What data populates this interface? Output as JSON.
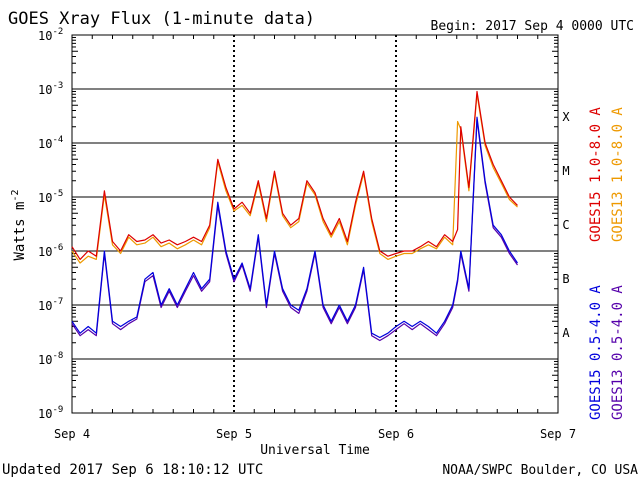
{
  "header": {
    "title": "GOES Xray Flux (1-minute data)",
    "begin": "Begin:  2017 Sep 4 0000 UTC"
  },
  "footer": {
    "updated": "Updated 2017 Sep  6 18:10:12 UTC",
    "credit": "NOAA/SWPC Boulder, CO USA"
  },
  "colors": {
    "goes15_long": "#dd0000",
    "goes13_long": "#ee9900",
    "goes15_short": "#0000dd",
    "goes13_short": "#5500aa"
  },
  "chart_data": {
    "type": "line",
    "xlabel": "Universal Time",
    "ylabel": "Watts m",
    "ylabel_superscript": "-2",
    "yscale": "log",
    "xlim": [
      0,
      3
    ],
    "ylim": [
      1e-09,
      0.01
    ],
    "grid": true,
    "x_ticks": [
      {
        "x": 0,
        "label": "Sep 4"
      },
      {
        "x": 1,
        "label": "Sep 5"
      },
      {
        "x": 2,
        "label": "Sep 6"
      },
      {
        "x": 3,
        "label": "Sep 7"
      }
    ],
    "y_ticks": [
      {
        "exp": -2,
        "label": "10",
        "sup": "-2"
      },
      {
        "exp": -3,
        "label": "10",
        "sup": "-3"
      },
      {
        "exp": -4,
        "label": "10",
        "sup": "-4"
      },
      {
        "exp": -5,
        "label": "10",
        "sup": "-5"
      },
      {
        "exp": -6,
        "label": "10",
        "sup": "-6"
      },
      {
        "exp": -7,
        "label": "10",
        "sup": "-7"
      },
      {
        "exp": -8,
        "label": "10",
        "sup": "-8"
      },
      {
        "exp": -9,
        "label": "10",
        "sup": "-9"
      }
    ],
    "flare_classes": [
      {
        "label": "X",
        "exp": -3.5
      },
      {
        "label": "M",
        "exp": -4.5
      },
      {
        "label": "C",
        "exp": -5.5
      },
      {
        "label": "B",
        "exp": -6.5
      },
      {
        "label": "A",
        "exp": -7.5
      }
    ],
    "legend": [
      {
        "text": "GOES15 1.0-8.0 A",
        "color": "#dd0000"
      },
      {
        "text": "GOES13 1.0-8.0 A",
        "color": "#ee9900"
      },
      {
        "text": "GOES15 0.5-4.0 A",
        "color": "#0000dd"
      },
      {
        "text": "GOES13 0.5-4.0 A",
        "color": "#5500aa"
      }
    ],
    "series": [
      {
        "name": "GOES15 1.0-8.0 A",
        "color": "#dd0000",
        "x": [
          0.0,
          0.05,
          0.1,
          0.15,
          0.2,
          0.25,
          0.3,
          0.35,
          0.4,
          0.45,
          0.5,
          0.55,
          0.6,
          0.65,
          0.7,
          0.75,
          0.8,
          0.85,
          0.9,
          0.95,
          1.0,
          1.05,
          1.1,
          1.15,
          1.2,
          1.25,
          1.3,
          1.35,
          1.4,
          1.45,
          1.5,
          1.55,
          1.6,
          1.65,
          1.7,
          1.75,
          1.8,
          1.85,
          1.9,
          1.95,
          2.0,
          2.05,
          2.1,
          2.15,
          2.2,
          2.25,
          2.3,
          2.35,
          2.38,
          2.4,
          2.45,
          2.5,
          2.55,
          2.6,
          2.65,
          2.7,
          2.75
        ],
        "y": [
          1.2e-06,
          7e-07,
          1e-06,
          8e-07,
          1.3e-05,
          1.5e-06,
          1e-06,
          2e-06,
          1.5e-06,
          1.6e-06,
          2e-06,
          1.4e-06,
          1.6e-06,
          1.3e-06,
          1.5e-06,
          1.8e-06,
          1.5e-06,
          3e-06,
          5e-05,
          1.5e-05,
          6e-06,
          8e-06,
          5e-06,
          2e-05,
          4e-06,
          3e-05,
          5e-06,
          3e-06,
          4e-06,
          2e-05,
          1.2e-05,
          4e-06,
          2e-06,
          4e-06,
          1.5e-06,
          8e-06,
          3e-05,
          4e-06,
          1e-06,
          8e-07,
          9e-07,
          1e-06,
          1e-06,
          1.2e-06,
          1.5e-06,
          1.2e-06,
          2e-06,
          1.5e-06,
          2.5e-06,
          0.0002,
          1.5e-05,
          0.0009,
          0.0001,
          4e-05,
          2e-05,
          1e-05,
          7e-06
        ]
      },
      {
        "name": "GOES13 1.0-8.0 A",
        "color": "#ee9900",
        "x": [
          0.0,
          0.05,
          0.1,
          0.15,
          0.2,
          0.25,
          0.3,
          0.35,
          0.4,
          0.45,
          0.5,
          0.55,
          0.6,
          0.65,
          0.7,
          0.75,
          0.8,
          0.85,
          0.9,
          0.95,
          1.0,
          1.05,
          1.1,
          1.15,
          1.2,
          1.25,
          1.3,
          1.35,
          1.4,
          1.45,
          1.5,
          1.55,
          1.6,
          1.65,
          1.7,
          1.75,
          1.8,
          1.85,
          1.9,
          1.95,
          2.0,
          2.05,
          2.1,
          2.15,
          2.2,
          2.25,
          2.3,
          2.35,
          2.38,
          2.4,
          2.45,
          2.5,
          2.55,
          2.6,
          2.65,
          2.7,
          2.75
        ],
        "y": [
          1e-06,
          6e-07,
          8e-07,
          7e-07,
          1.1e-05,
          1.3e-06,
          9e-07,
          1.8e-06,
          1.3e-06,
          1.4e-06,
          1.8e-06,
          1.2e-06,
          1.4e-06,
          1.1e-06,
          1.3e-06,
          1.6e-06,
          1.3e-06,
          2.7e-06,
          4.5e-05,
          1.3e-05,
          5.5e-06,
          7e-06,
          4.5e-06,
          1.8e-05,
          3.5e-06,
          2.7e-05,
          4.5e-06,
          2.7e-06,
          3.5e-06,
          1.8e-05,
          1.1e-05,
          3.5e-06,
          1.8e-06,
          3.5e-06,
          1.3e-06,
          7e-06,
          2.7e-05,
          3.5e-06,
          9e-07,
          7e-07,
          8e-07,
          9e-07,
          9e-07,
          1.1e-06,
          1.3e-06,
          1.1e-06,
          1.8e-06,
          1.3e-06,
          0.00025,
          0.00018,
          1.3e-05,
          0.0008,
          9e-05,
          3.5e-05,
          1.8e-05,
          9e-06,
          6.5e-06
        ]
      },
      {
        "name": "GOES15 0.5-4.0 A",
        "color": "#0000dd",
        "x": [
          0.0,
          0.05,
          0.1,
          0.15,
          0.2,
          0.25,
          0.3,
          0.35,
          0.4,
          0.45,
          0.5,
          0.55,
          0.6,
          0.65,
          0.7,
          0.75,
          0.8,
          0.85,
          0.9,
          0.95,
          1.0,
          1.05,
          1.1,
          1.15,
          1.2,
          1.25,
          1.3,
          1.35,
          1.4,
          1.45,
          1.5,
          1.55,
          1.6,
          1.65,
          1.7,
          1.75,
          1.8,
          1.85,
          1.9,
          1.95,
          2.0,
          2.05,
          2.1,
          2.15,
          2.2,
          2.25,
          2.3,
          2.35,
          2.38,
          2.4,
          2.45,
          2.5,
          2.55,
          2.6,
          2.65,
          2.7,
          2.75
        ],
        "y": [
          5e-08,
          3e-08,
          4e-08,
          3e-08,
          1e-06,
          5e-08,
          4e-08,
          5e-08,
          6e-08,
          3e-07,
          4e-07,
          1e-07,
          2e-07,
          1e-07,
          2e-07,
          4e-07,
          2e-07,
          3e-07,
          8e-06,
          1e-06,
          3e-07,
          6e-07,
          2e-07,
          2e-06,
          1e-07,
          1e-06,
          2e-07,
          1e-07,
          8e-08,
          2e-07,
          1e-06,
          1e-07,
          5e-08,
          1e-07,
          5e-08,
          1e-07,
          5e-07,
          3e-08,
          2.5e-08,
          3e-08,
          4e-08,
          5e-08,
          4e-08,
          5e-08,
          4e-08,
          3e-08,
          5e-08,
          1e-07,
          3e-07,
          1e-06,
          2e-07,
          0.0003,
          2e-05,
          3e-06,
          2e-06,
          1e-06,
          6e-07
        ]
      },
      {
        "name": "GOES13 0.5-4.0 A",
        "color": "#5500aa",
        "x": [
          0.0,
          0.05,
          0.1,
          0.15,
          0.2,
          0.25,
          0.3,
          0.35,
          0.4,
          0.45,
          0.5,
          0.55,
          0.6,
          0.65,
          0.7,
          0.75,
          0.8,
          0.85,
          0.9,
          0.95,
          1.0,
          1.05,
          1.1,
          1.15,
          1.2,
          1.25,
          1.3,
          1.35,
          1.4,
          1.45,
          1.5,
          1.55,
          1.6,
          1.65,
          1.7,
          1.75,
          1.8,
          1.85,
          1.9,
          1.95,
          2.0,
          2.05,
          2.1,
          2.15,
          2.2,
          2.25,
          2.3,
          2.35,
          2.38,
          2.4,
          2.45,
          2.5,
          2.55,
          2.6,
          2.65,
          2.7,
          2.75
        ],
        "y": [
          4.5e-08,
          2.7e-08,
          3.5e-08,
          2.7e-08,
          9e-07,
          4.5e-08,
          3.5e-08,
          4.5e-08,
          5.5e-08,
          2.7e-07,
          3.5e-07,
          9e-08,
          1.8e-07,
          9e-08,
          1.8e-07,
          3.5e-07,
          1.8e-07,
          2.7e-07,
          7e-06,
          9e-07,
          2.7e-07,
          5.5e-07,
          1.8e-07,
          1.8e-06,
          9e-08,
          9e-07,
          1.8e-07,
          9e-08,
          7e-08,
          1.8e-07,
          9e-07,
          9e-08,
          4.5e-08,
          9e-08,
          4.5e-08,
          9e-08,
          4.5e-07,
          2.7e-08,
          2.2e-08,
          2.7e-08,
          3.5e-08,
          4.5e-08,
          3.5e-08,
          4.5e-08,
          3.5e-08,
          2.7e-08,
          4.5e-08,
          9e-08,
          2.7e-07,
          9e-07,
          1.8e-07,
          0.00027,
          1.8e-05,
          2.7e-06,
          1.8e-06,
          9e-07,
          5.5e-07
        ]
      }
    ]
  }
}
